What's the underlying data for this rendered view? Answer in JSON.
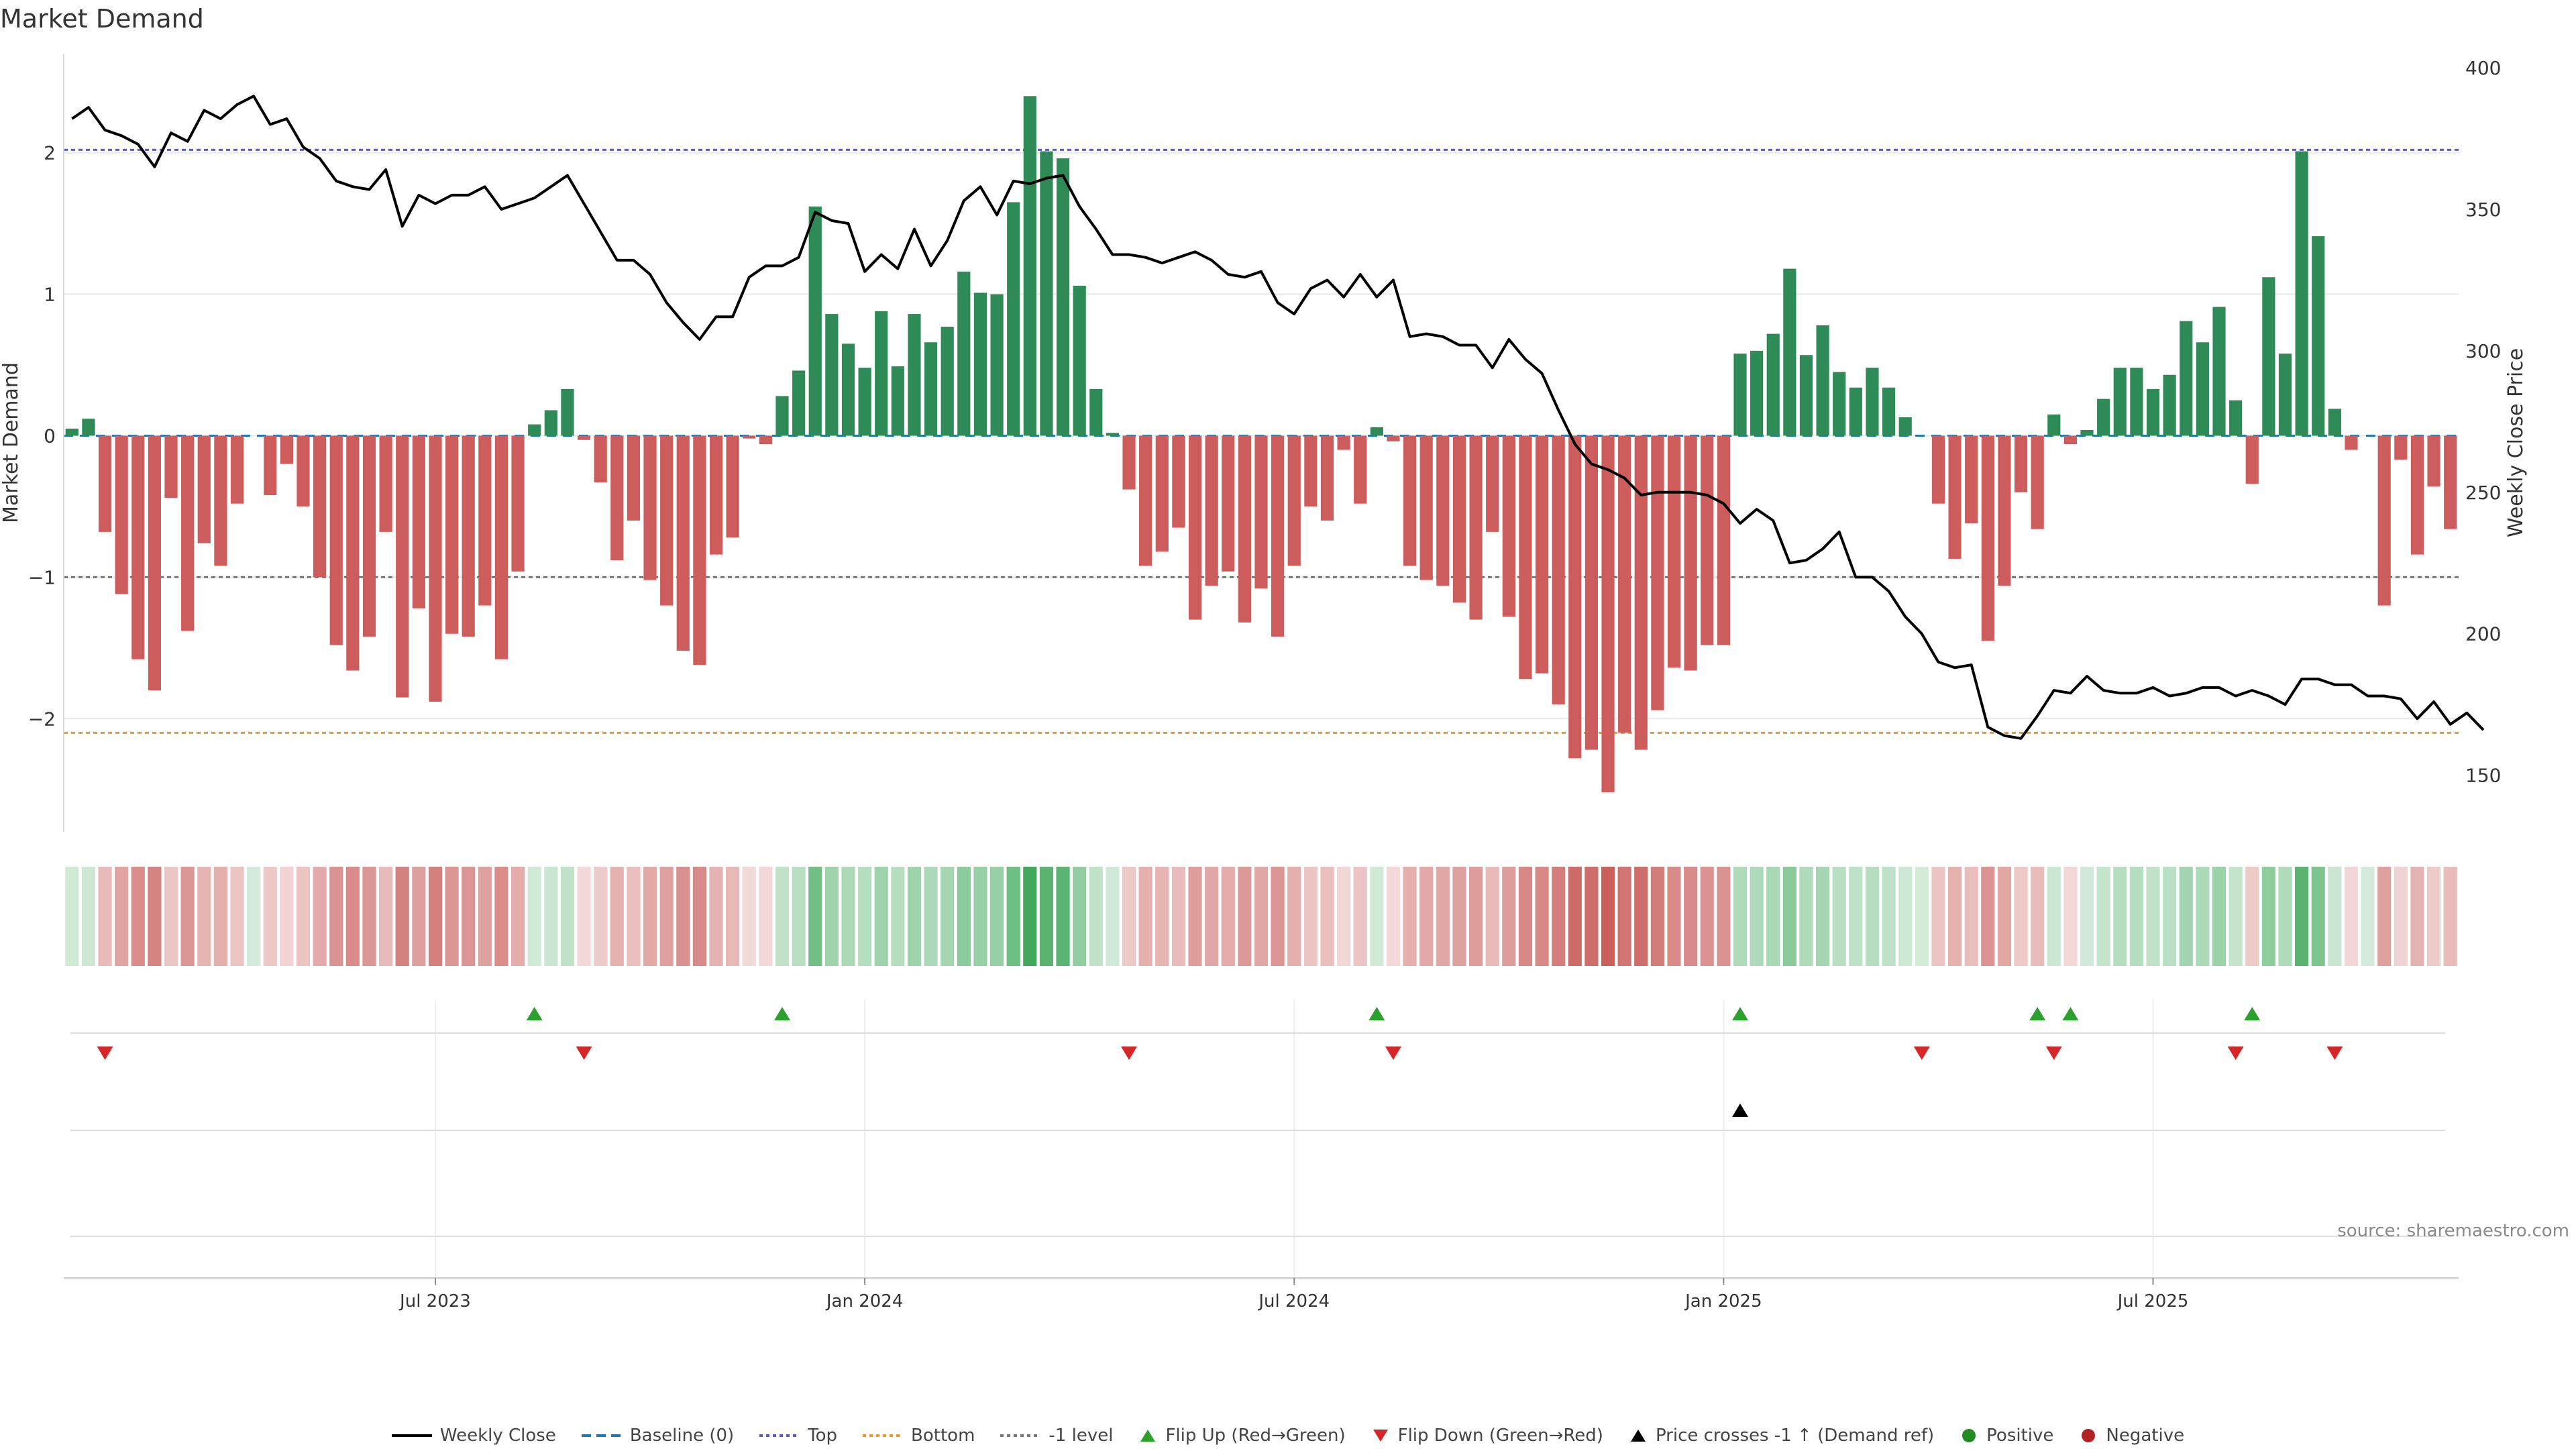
{
  "chart_data": {
    "type": "bar",
    "title": "Market Demand",
    "source": "source: sharemaestro.com",
    "ylabel_left": "Market Demand",
    "ylabel_right": "Weekly Close Price",
    "ylim_left": [
      -2.8,
      2.7
    ],
    "ylim_right": [
      130,
      405
    ],
    "yticks_left": [
      2,
      1,
      0,
      -1,
      -2
    ],
    "yticks_left_labels": [
      "2",
      "1",
      "0",
      "−1",
      "−2"
    ],
    "yticks_right": [
      400,
      350,
      300,
      250,
      200,
      150
    ],
    "xtick_labels": [
      "Jul 2023",
      "Jan 2024",
      "Jul 2024",
      "Jan 2025",
      "Jul 2025"
    ],
    "xtick_index": [
      22,
      48,
      74,
      100,
      126
    ],
    "ref_lines": {
      "top": 2.02,
      "bottom": -2.1,
      "minus_one": -1.0
    },
    "demand": [
      0.05,
      0.12,
      -0.68,
      -1.12,
      -1.58,
      -1.8,
      -0.44,
      -1.38,
      -0.76,
      -0.92,
      -0.48,
      0.0,
      -0.42,
      -0.2,
      -0.5,
      -1.0,
      -1.48,
      -1.66,
      -1.42,
      -0.68,
      -1.85,
      -1.22,
      -1.88,
      -1.4,
      -1.42,
      -1.2,
      -1.58,
      -0.96,
      0.08,
      0.18,
      0.33,
      -0.03,
      -0.33,
      -0.88,
      -0.6,
      -1.02,
      -1.2,
      -1.52,
      -1.62,
      -0.84,
      -0.72,
      -0.02,
      -0.06,
      0.28,
      0.46,
      1.62,
      0.86,
      0.65,
      0.48,
      0.88,
      0.49,
      0.86,
      0.66,
      0.77,
      1.16,
      1.01,
      1.0,
      1.65,
      2.4,
      2.01,
      1.96,
      1.06,
      0.33,
      0.02,
      -0.38,
      -0.92,
      -0.82,
      -0.65,
      -1.3,
      -1.06,
      -0.96,
      -1.32,
      -1.08,
      -1.42,
      -0.92,
      -0.5,
      -0.6,
      -0.1,
      -0.48,
      0.06,
      -0.04,
      -0.92,
      -1.02,
      -1.06,
      -1.18,
      -1.3,
      -0.68,
      -1.28,
      -1.72,
      -1.68,
      -1.9,
      -2.28,
      -2.22,
      -2.52,
      -2.1,
      -2.22,
      -1.94,
      -1.64,
      -1.66,
      -1.48,
      -1.48,
      0.58,
      0.6,
      0.72,
      1.18,
      0.57,
      0.78,
      0.45,
      0.34,
      0.48,
      0.34,
      0.13,
      0.0,
      -0.48,
      -0.87,
      -0.62,
      -1.45,
      -1.06,
      -0.4,
      -0.66,
      0.15,
      -0.06,
      0.04,
      0.26,
      0.48,
      0.48,
      0.33,
      0.43,
      0.81,
      0.66,
      0.91,
      0.25,
      -0.34,
      1.12,
      0.58,
      2.01,
      1.41,
      0.19,
      -0.1,
      0.0,
      -1.2,
      -0.17,
      -0.84,
      -0.36,
      -0.66
    ],
    "price": [
      382,
      386,
      378,
      376,
      373,
      365,
      377,
      374,
      385,
      382,
      387,
      390,
      380,
      382,
      372,
      368,
      360,
      358,
      357,
      364,
      344,
      355,
      352,
      355,
      355,
      358,
      350,
      352,
      354,
      358,
      362,
      352,
      342,
      332,
      332,
      327,
      317,
      310,
      304,
      312,
      312,
      326,
      330,
      330,
      333,
      349,
      346,
      345,
      328,
      334,
      329,
      343,
      330,
      339,
      353,
      358,
      348,
      360,
      359,
      361,
      362,
      351,
      343,
      334,
      334,
      333,
      331,
      333,
      335,
      332,
      327,
      326,
      328,
      317,
      313,
      322,
      325,
      319,
      327,
      319,
      325,
      305,
      306,
      305,
      302,
      302,
      294,
      304,
      297,
      292,
      279,
      267,
      260,
      258,
      255,
      249,
      250,
      250,
      250,
      249,
      246,
      239,
      244,
      240,
      225,
      226,
      230,
      236,
      220,
      220,
      215,
      206,
      200,
      190,
      188,
      189,
      167,
      164,
      163,
      171,
      180,
      179,
      185,
      180,
      179,
      179,
      181,
      178,
      179,
      181,
      181,
      178,
      180,
      178,
      175,
      184,
      184,
      182,
      182,
      178,
      178,
      177,
      170,
      176,
      168,
      172,
      166
    ],
    "series_names": [
      "Weekly Close",
      "Market Demand"
    ],
    "flip_up_index": [
      28,
      43,
      79,
      101,
      119,
      121,
      132
    ],
    "flip_down_index": [
      2,
      31,
      64,
      80,
      112,
      120,
      131,
      137
    ],
    "price_cross_index": [
      101
    ],
    "legend": [
      {
        "label": "Weekly Close",
        "symbol": "line",
        "color": "#000000"
      },
      {
        "label": "Baseline (0)",
        "symbol": "dash",
        "color": "#1f77b4"
      },
      {
        "label": "Top",
        "symbol": "dot",
        "color": "#5b5bbf"
      },
      {
        "label": "Bottom",
        "symbol": "dot",
        "color": "#e39a3a"
      },
      {
        "label": "-1 level",
        "symbol": "dot",
        "color": "#777777"
      },
      {
        "label": "Flip Up (Red→Green)",
        "symbol": "tri-up",
        "color": "#2ca02c"
      },
      {
        "label": "Flip Down (Green→Red)",
        "symbol": "tri-down",
        "color": "#d62728"
      },
      {
        "label": "Price crosses -1 ↑ (Demand ref)",
        "symbol": "tri-up",
        "color": "#000000"
      },
      {
        "label": "Positive",
        "symbol": "circle",
        "color": "#228b22"
      },
      {
        "label": "Negative",
        "symbol": "circle",
        "color": "#b22222"
      }
    ],
    "colors": {
      "positive": "#2e8b57",
      "negative": "#cd5c5c",
      "price": "#000000",
      "grid": "#e8e8e8"
    }
  }
}
